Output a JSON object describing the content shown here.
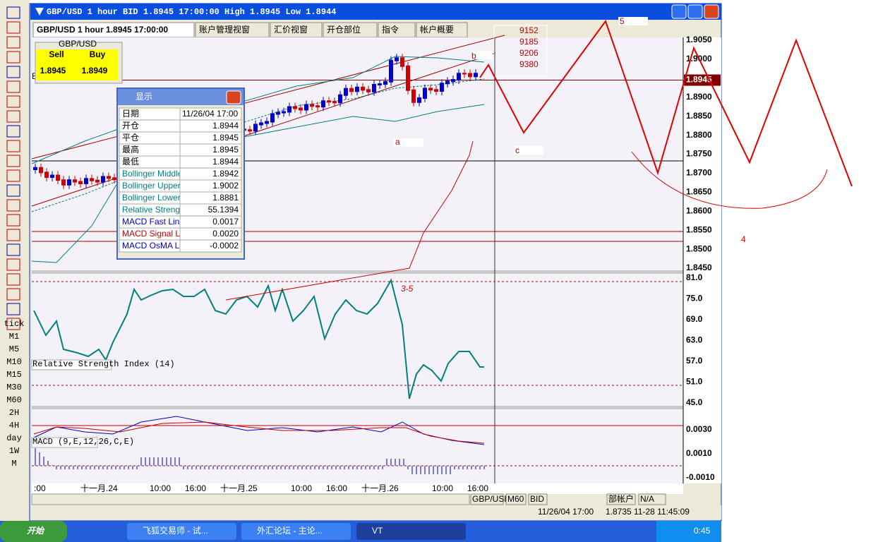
{
  "window": {
    "title": "GBP/USD 1 hour BID 1.8945 17:00:00 High 1.8945 Low 1.8944"
  },
  "tabs": [
    "GBP/USD 1 hour 1.8945 17:00:00",
    "账户管理视窗",
    "汇价视窗",
    "开仓部位",
    "指令",
    "帐户概要"
  ],
  "quote": {
    "symbol": "GBP/USD",
    "sell_label": "Sell",
    "buy_label": "Buy",
    "sell": "1.8945",
    "buy": "1.8949"
  },
  "chart_marker": "B",
  "data_window": {
    "title": "显示",
    "rows": [
      [
        "日期",
        "11/26/04 17:00"
      ],
      [
        "开仓",
        "1.8944"
      ],
      [
        "平仓",
        "1.8945"
      ],
      [
        "最高",
        "1.8945"
      ],
      [
        "最低",
        "1.8944"
      ],
      [
        "Bollinger Middle B",
        "1.8942"
      ],
      [
        "Bollinger Upper B",
        "1.9002"
      ],
      [
        "Bollinger Lower B",
        "1.8881"
      ],
      [
        "Relative Strength",
        "55.1394"
      ],
      [
        "MACD Fast Line",
        "0.0017"
      ],
      [
        "MACD Signal Line",
        "0.0020"
      ],
      [
        "MACD OsMA Line",
        "-0.0002"
      ]
    ]
  },
  "price_axis": {
    "ticks": [
      "1.9050",
      "1.9000",
      "1.8900",
      "1.8850",
      "1.8800",
      "1.8750",
      "1.8700",
      "1.8650",
      "1.8600",
      "1.8550",
      "1.8500",
      "1.8450"
    ],
    "current": "1.8945"
  },
  "rsi": {
    "label": "Relative Strength Index (14)",
    "ticks": [
      "81.0",
      "75.0",
      "69.0",
      "63.0",
      "57.0",
      "51.0",
      "45.0"
    ]
  },
  "macd": {
    "label": "MACD (9,E,12,26,C,E)",
    "ticks": [
      "0.0030",
      "0.0010",
      "-0.0010"
    ]
  },
  "time_axis": [
    ":00",
    "十一月.24",
    "10:00",
    "16:00",
    "十一月.25",
    "10:00",
    "16:00",
    "十一月.26",
    "10:00",
    "16:00"
  ],
  "annotations": {
    "levels": [
      "9152",
      "9185",
      "9206",
      "9380"
    ],
    "wave_5": "5",
    "point_a": "a",
    "point_b": "b",
    "point_c": "c",
    "rsi_note": "3-5",
    "wave_4": "4"
  },
  "toolbar_left": [
    "tick",
    "M1",
    "M5",
    "M10",
    "M15",
    "M30",
    "M60",
    "2H",
    "4H",
    "day",
    "1W",
    "M"
  ],
  "bottom_toolbar": [
    "GBP/USD",
    "M60",
    "BID",
    "部帐户",
    "N/A"
  ],
  "status": [
    "11/26/04 17:00",
    "1.8735",
    "11-28 11:45:09"
  ],
  "taskbar": {
    "start": "开始",
    "items": [
      "飞狐交易师 - 试...",
      "外汇论坛 - 主论...",
      "VT"
    ],
    "clock": "0:45"
  }
}
